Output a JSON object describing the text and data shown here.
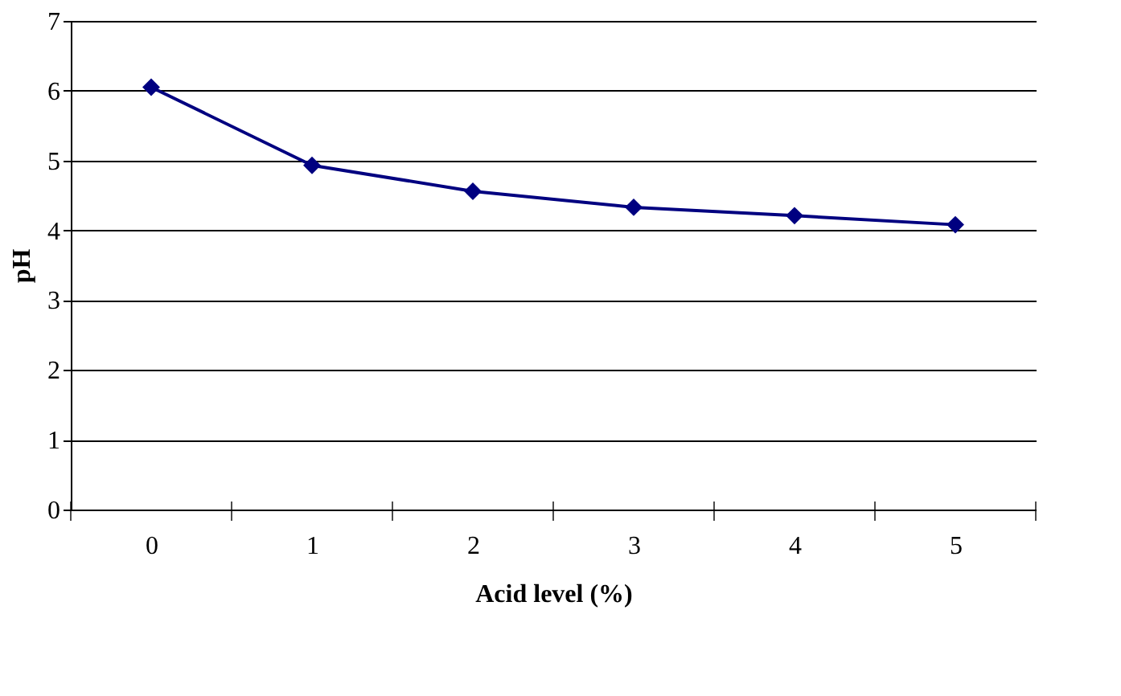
{
  "chart_data": {
    "type": "line",
    "xlabel": "Acid level (%)",
    "ylabel": "pH",
    "categories": [
      "0",
      "1",
      "2",
      "3",
      "4",
      "5"
    ],
    "series": [
      {
        "color": "#000080",
        "values": [
          6.05,
          4.93,
          4.56,
          4.33,
          4.21,
          4.08
        ]
      }
    ],
    "ylim": [
      0,
      7
    ],
    "yticks": [
      0,
      1,
      2,
      3,
      4,
      5,
      6,
      7
    ],
    "grid": "y",
    "marker": "diamond",
    "line_style": "solid",
    "legend": false
  }
}
